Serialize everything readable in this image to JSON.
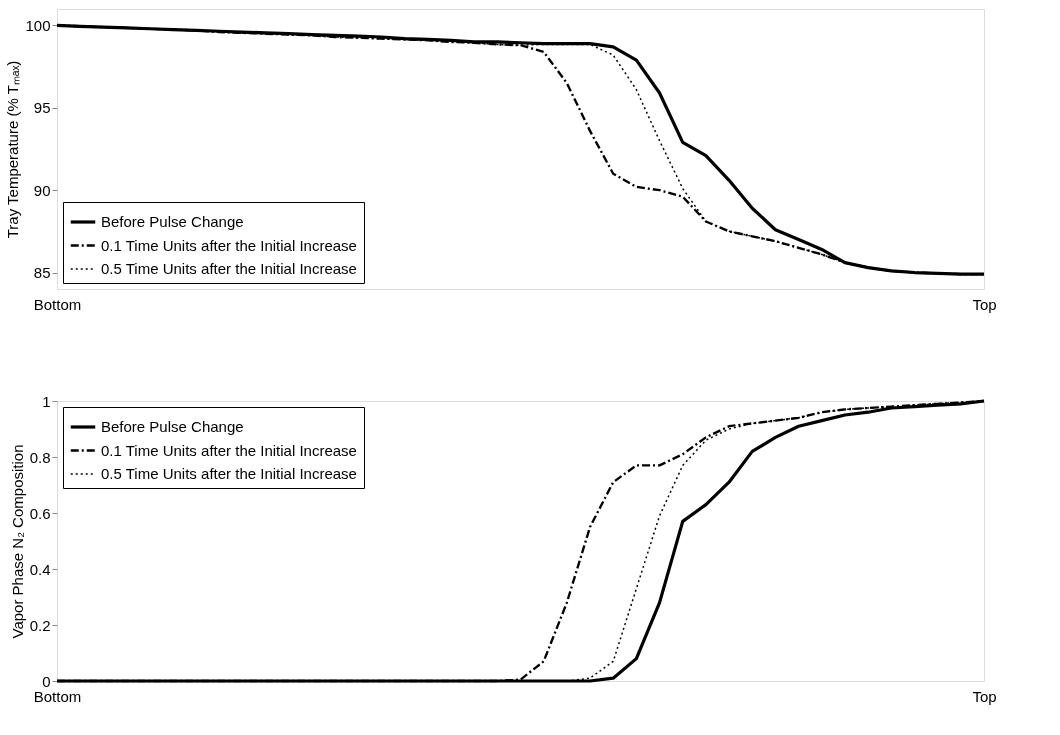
{
  "chart_data": [
    {
      "type": "line",
      "ylabel": "Tray Temperature (% Tₘₐₓ)",
      "categories": [
        "Bottom",
        null,
        null,
        null,
        null,
        null,
        null,
        null,
        null,
        null,
        null,
        null,
        null,
        null,
        null,
        null,
        null,
        null,
        null,
        null,
        null,
        null,
        null,
        null,
        null,
        null,
        null,
        null,
        null,
        null,
        null,
        null,
        null,
        null,
        null,
        null,
        null,
        null,
        null,
        null,
        "Top"
      ],
      "ylim": [
        84,
        101
      ],
      "yticks": [
        85,
        90,
        95,
        100
      ],
      "grid": false,
      "legend": "bottom left",
      "series": [
        {
          "name": "Before Pulse Change",
          "color": "#000000",
          "line_style": "solid",
          "values": [
            100,
            99.95,
            99.9,
            99.85,
            99.8,
            99.75,
            99.7,
            99.65,
            99.6,
            99.55,
            99.5,
            99.45,
            99.4,
            99.35,
            99.3,
            99.2,
            99.15,
            99.1,
            99.0,
            99.0,
            98.95,
            98.9,
            98.9,
            98.9,
            98.7,
            97.9,
            95.9,
            92.9,
            92.1,
            90.6,
            88.9,
            87.6,
            87.0,
            86.4,
            85.6,
            85.3,
            85.1,
            85.0,
            84.95,
            84.9,
            84.9
          ]
        },
        {
          "name": "0.1 Time Units after the Initial Increase",
          "color": "#000000",
          "line_style": "dashdot",
          "values": [
            100,
            99.95,
            99.9,
            99.85,
            99.8,
            99.75,
            99.7,
            99.6,
            99.55,
            99.5,
            99.45,
            99.4,
            99.3,
            99.25,
            99.2,
            99.15,
            99.1,
            99.0,
            98.95,
            98.85,
            98.8,
            98.4,
            96.5,
            93.6,
            91.0,
            90.2,
            90.0,
            89.6,
            88.1,
            87.5,
            87.2,
            86.9,
            86.5,
            86.1,
            85.6,
            85.3,
            85.1,
            85.0,
            84.95,
            84.9,
            84.9
          ]
        },
        {
          "name": "0.5 Time Units after the Initial Increase",
          "color": "#000000",
          "line_style": "dotted",
          "values": [
            100,
            99.95,
            99.9,
            99.85,
            99.8,
            99.75,
            99.7,
            99.6,
            99.55,
            99.5,
            99.45,
            99.4,
            99.3,
            99.25,
            99.2,
            99.15,
            99.1,
            99.0,
            98.95,
            98.85,
            98.8,
            98.85,
            98.85,
            98.85,
            98.2,
            96.1,
            93.0,
            90.1,
            88.1,
            87.5,
            87.2,
            86.9,
            86.5,
            86.1,
            85.6,
            85.3,
            85.1,
            85.0,
            84.95,
            84.9,
            84.9
          ]
        }
      ]
    },
    {
      "type": "line",
      "ylabel": "Vapor Phase N₂ Composition",
      "categories": [
        "Bottom",
        null,
        null,
        null,
        null,
        null,
        null,
        null,
        null,
        null,
        null,
        null,
        null,
        null,
        null,
        null,
        null,
        null,
        null,
        null,
        null,
        null,
        null,
        null,
        null,
        null,
        null,
        null,
        null,
        null,
        null,
        null,
        null,
        null,
        null,
        null,
        null,
        null,
        null,
        null,
        "Top"
      ],
      "ylim": [
        0,
        1
      ],
      "yticks": [
        0,
        0.2,
        0.4,
        0.6,
        0.8,
        1
      ],
      "grid": false,
      "legend": "top left",
      "series": [
        {
          "name": "Before Pulse Change",
          "color": "#000000",
          "line_style": "solid",
          "values": [
            0,
            0,
            0,
            0,
            0,
            0,
            0,
            0,
            0,
            0,
            0,
            0,
            0,
            0,
            0,
            0,
            0,
            0,
            0,
            0,
            0,
            0,
            0,
            0,
            0.01,
            0.08,
            0.28,
            0.57,
            0.63,
            0.71,
            0.82,
            0.87,
            0.91,
            0.93,
            0.95,
            0.96,
            0.975,
            0.98,
            0.985,
            0.99,
            1
          ]
        },
        {
          "name": "0.1 Time Units after the Initial Increase",
          "color": "#000000",
          "line_style": "dashdot",
          "values": [
            0,
            0,
            0,
            0,
            0,
            0,
            0,
            0,
            0,
            0,
            0,
            0,
            0,
            0,
            0,
            0,
            0,
            0,
            0,
            0,
            0.005,
            0.07,
            0.28,
            0.55,
            0.71,
            0.77,
            0.77,
            0.81,
            0.87,
            0.91,
            0.92,
            0.93,
            0.94,
            0.96,
            0.97,
            0.975,
            0.98,
            0.985,
            0.99,
            0.995,
            1
          ]
        },
        {
          "name": "0.5 Time Units after the Initial Increase",
          "color": "#000000",
          "line_style": "dotted",
          "values": [
            0,
            0,
            0,
            0,
            0,
            0,
            0,
            0,
            0,
            0,
            0,
            0,
            0,
            0,
            0,
            0,
            0,
            0,
            0,
            0,
            0,
            0,
            0,
            0.01,
            0.07,
            0.33,
            0.59,
            0.77,
            0.86,
            0.9,
            0.92,
            0.93,
            0.94,
            0.96,
            0.97,
            0.975,
            0.98,
            0.985,
            0.99,
            0.995,
            1
          ]
        }
      ]
    }
  ]
}
